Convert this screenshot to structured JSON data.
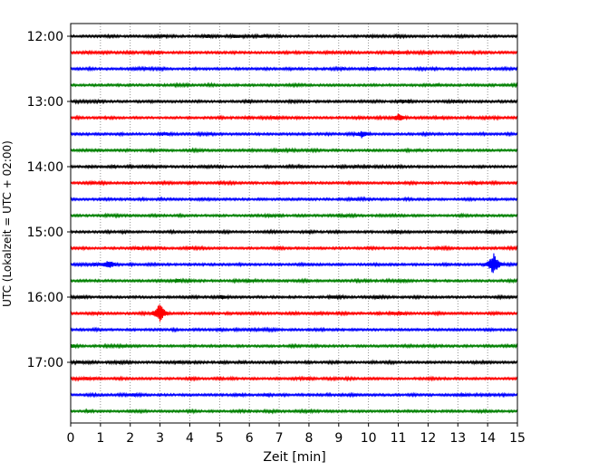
{
  "chart_data": {
    "type": "line",
    "subtype": "helicorder",
    "title": "",
    "xlabel": "Zeit  [min]",
    "ylabel": "UTC (Lokalzeit = UTC + 02:00)",
    "xlim": [
      0,
      15
    ],
    "x_ticks": [
      "0",
      "1",
      "2",
      "3",
      "4",
      "5",
      "6",
      "7",
      "8",
      "9",
      "10",
      "11",
      "12",
      "13",
      "14",
      "15"
    ],
    "y_ticks": [
      "12:00",
      "13:00",
      "14:00",
      "15:00",
      "16:00",
      "17:00"
    ],
    "grid": "vertical dotted lines at each minute",
    "trace_minutes": 15,
    "trace_colors": [
      "#000000",
      "#ff0000",
      "#0000ff",
      "#008000"
    ],
    "rows": [
      "12:00",
      "12:15",
      "12:30",
      "12:45",
      "13:00",
      "13:15",
      "13:30",
      "13:45",
      "14:00",
      "14:15",
      "14:30",
      "14:45",
      "15:00",
      "15:15",
      "15:30",
      "15:45",
      "16:00",
      "16:15",
      "16:30",
      "16:45",
      "17:00",
      "17:15",
      "17:30",
      "17:45"
    ],
    "events": [
      {
        "row": "15:30",
        "minute": 14.2,
        "relative_amplitude": 1.0
      },
      {
        "row": "16:15",
        "minute": 3.0,
        "relative_amplitude": 1.0
      },
      {
        "row": "15:30",
        "minute": 1.3,
        "relative_amplitude": 0.4
      },
      {
        "row": "13:30",
        "minute": 9.8,
        "relative_amplitude": 0.35
      },
      {
        "row": "13:15",
        "minute": 11.0,
        "relative_amplitude": 0.3
      }
    ]
  }
}
